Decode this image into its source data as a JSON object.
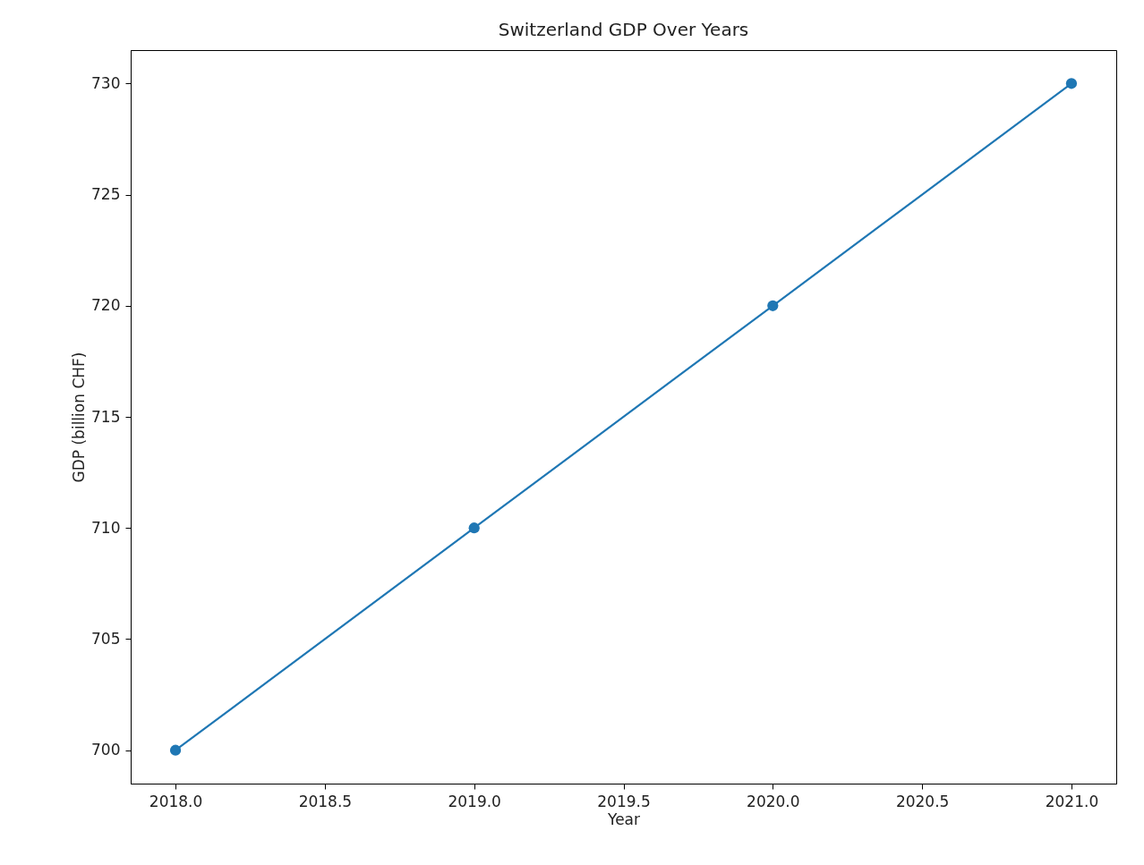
{
  "chart_data": {
    "type": "line",
    "title": "Switzerland GDP Over Years",
    "xlabel": "Year",
    "ylabel": "GDP (billion CHF)",
    "x": [
      2018,
      2019,
      2020,
      2021
    ],
    "series": [
      {
        "color": "#1f77b4",
        "values": [
          700,
          710,
          720,
          730
        ]
      }
    ],
    "xlim": [
      2017.85,
      2021.15
    ],
    "xticks": [
      {
        "value": 2018,
        "label": "2018.0"
      },
      {
        "value": 2018.5,
        "label": "2018.5"
      },
      {
        "value": 2019,
        "label": "2019.0"
      },
      {
        "value": 2019.5,
        "label": "2019.5"
      },
      {
        "value": 2020,
        "label": "2020.0"
      },
      {
        "value": 2020.5,
        "label": "2020.5"
      },
      {
        "value": 2021,
        "label": "2021.0"
      }
    ],
    "ylim": [
      698.5,
      731.5
    ],
    "yticks": [
      700,
      705,
      710,
      715,
      720,
      725,
      730
    ],
    "grid": false,
    "marker": "circle",
    "line_style": "solid"
  }
}
